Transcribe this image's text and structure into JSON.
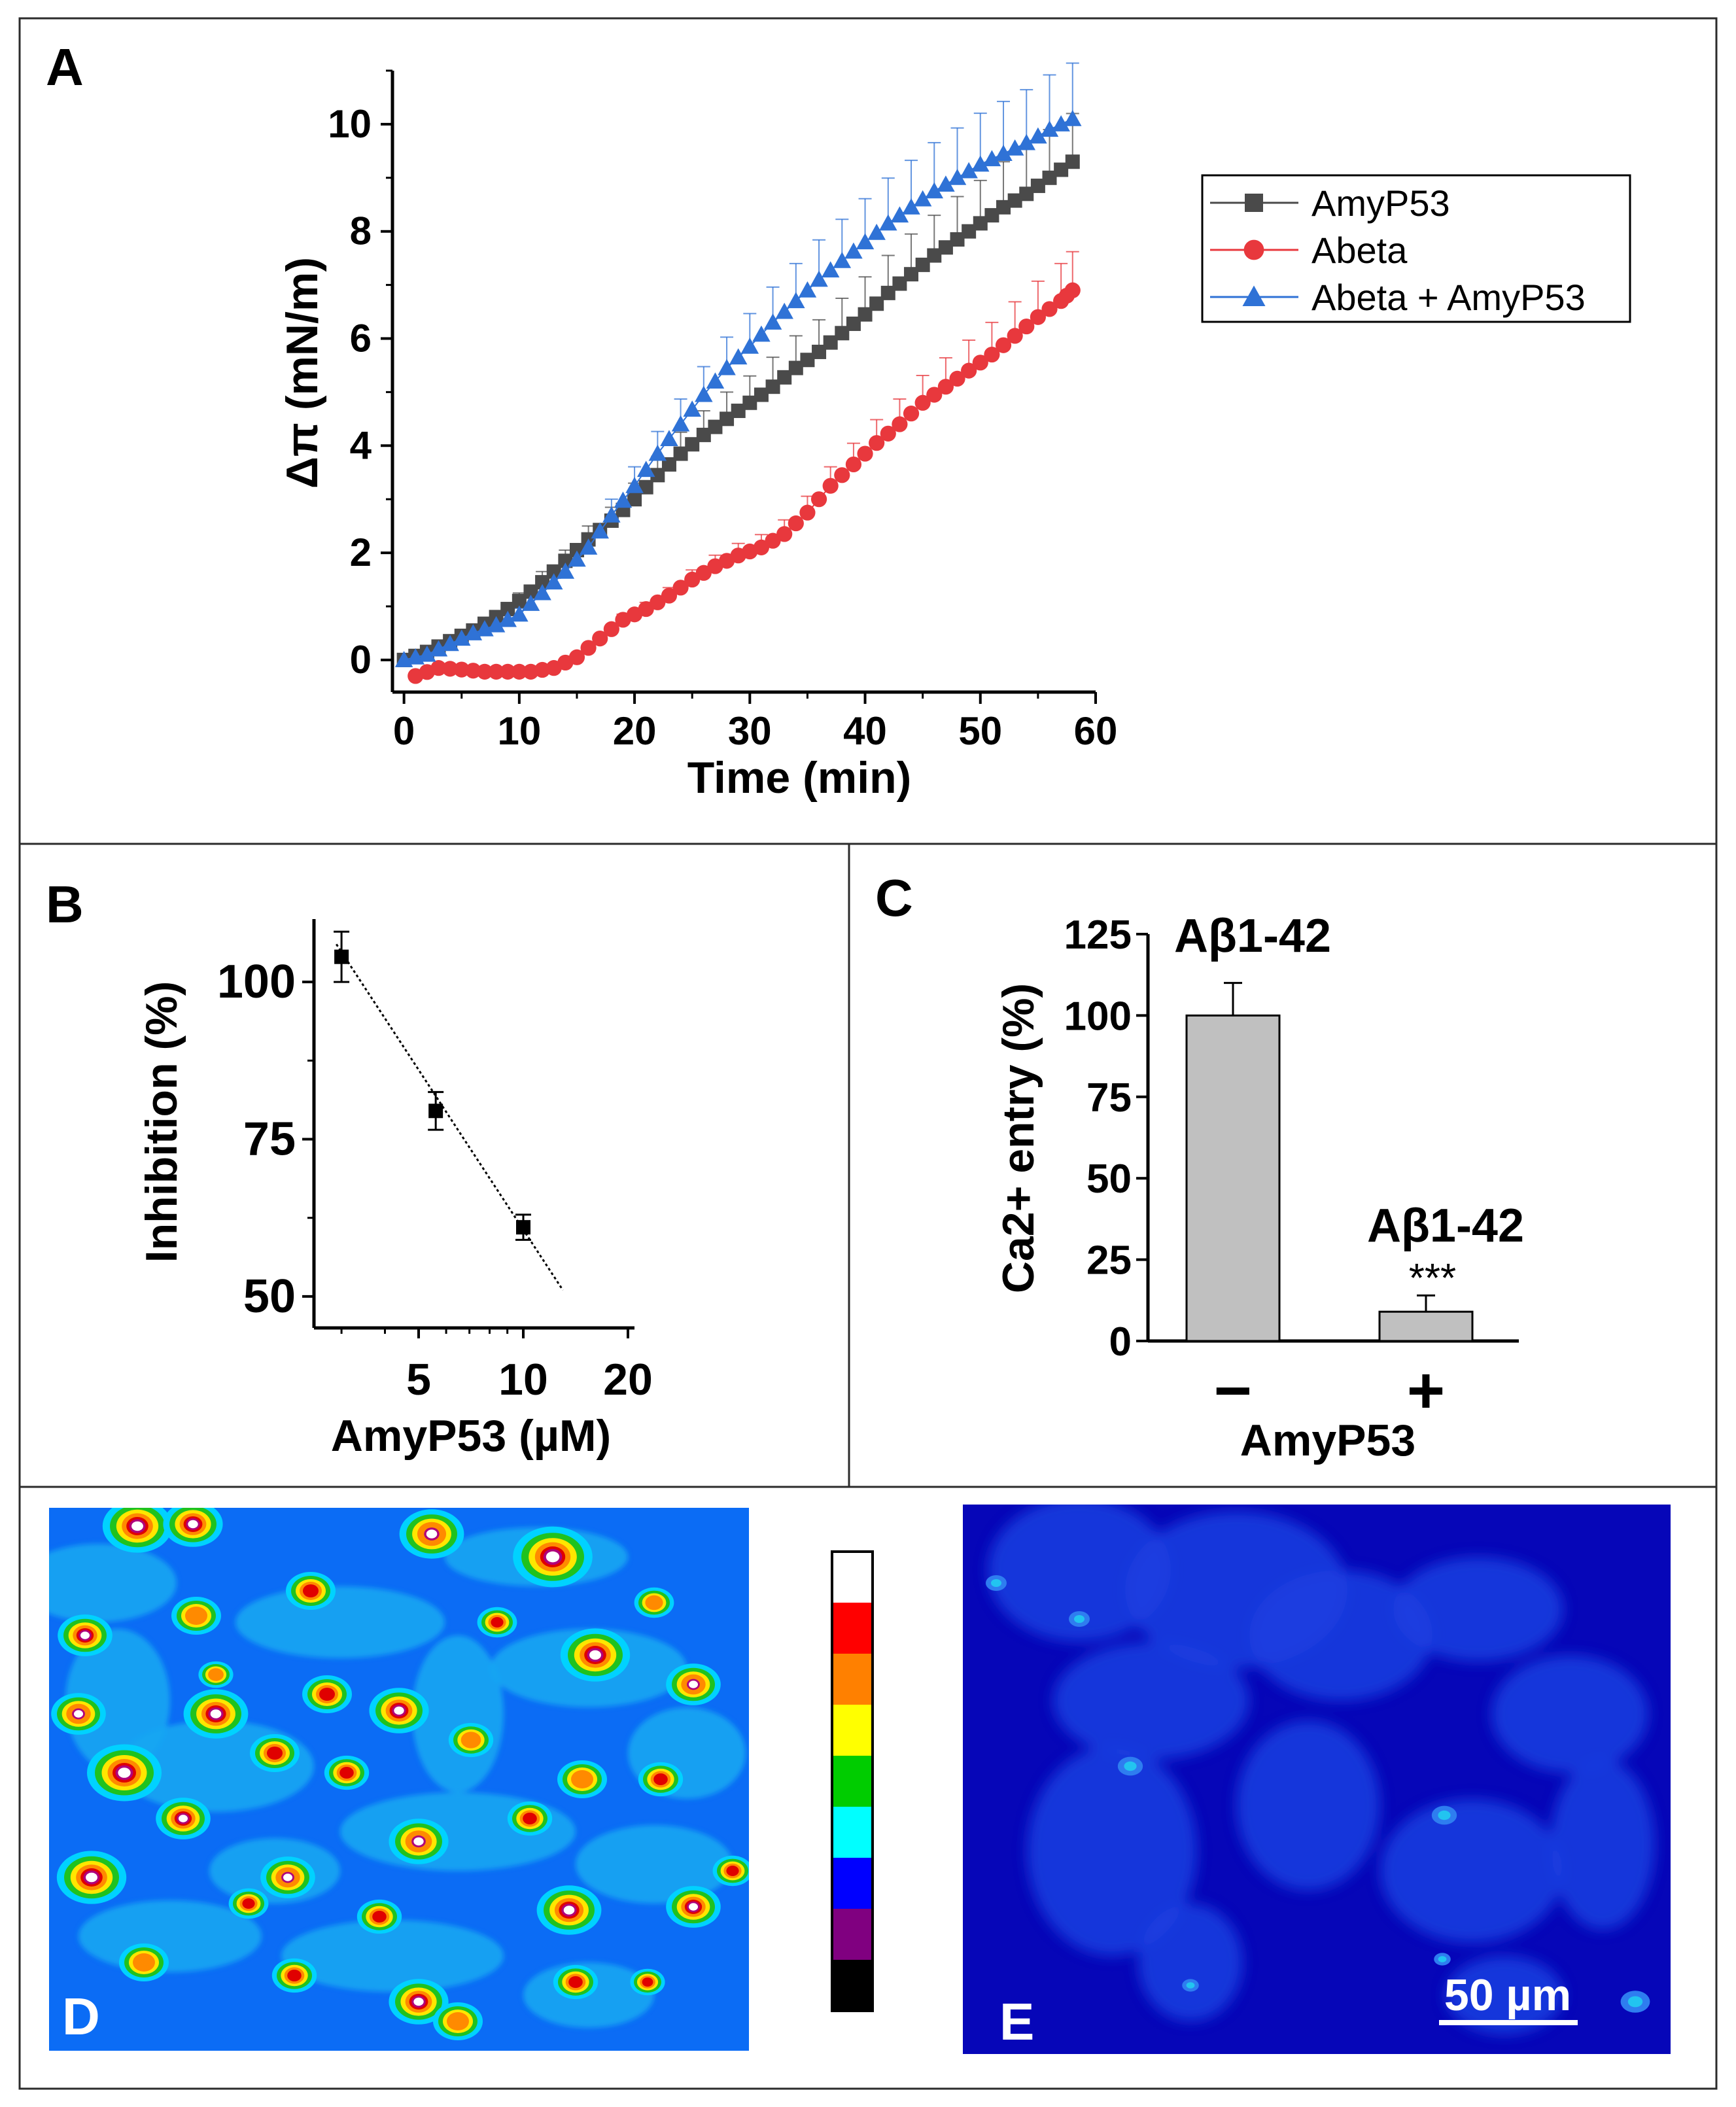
{
  "panels": {
    "A": {
      "letter": "A"
    },
    "B": {
      "letter": "B"
    },
    "C": {
      "letter": "C"
    },
    "D": {
      "letter": "D"
    },
    "E": {
      "letter": "E"
    }
  },
  "colors": {
    "amyp53": "#4a4a4a",
    "abeta": "#e8383d",
    "abeta_amyp53": "#2f72d6",
    "bar_fill": "#c0c0c0",
    "scale_bar": "#ffffff"
  },
  "colorbar_colors": [
    "#ffffff",
    "#ff0000",
    "#ff8000",
    "#ffff00",
    "#00cc00",
    "#00ffff",
    "#0000ff",
    "#800080",
    "#000000"
  ],
  "scale_bar_label": "50 µm",
  "chart_data": [
    {
      "id": "A",
      "type": "line",
      "title": "",
      "xlabel": "Time (min)",
      "ylabel": "Δπ (mN/m)",
      "xlim": [
        -1,
        60
      ],
      "ylim": [
        -0.6,
        11
      ],
      "xticks": [
        0,
        10,
        20,
        30,
        40,
        50,
        60
      ],
      "yticks": [
        0,
        2,
        4,
        6,
        8,
        10
      ],
      "legend": [
        "AmyP53",
        "Abeta",
        "Abeta + AmyP53"
      ],
      "legend_position": "right",
      "series": [
        {
          "name": "AmyP53",
          "marker": "square",
          "x": [
            0,
            2,
            4,
            6,
            8,
            10,
            12,
            14,
            16,
            18,
            20,
            22,
            24,
            26,
            28,
            30,
            32,
            34,
            36,
            38,
            40,
            42,
            44,
            46,
            48,
            50,
            52,
            54,
            56,
            58
          ],
          "values": [
            0,
            0.15,
            0.35,
            0.55,
            0.8,
            1.1,
            1.45,
            1.85,
            2.25,
            2.6,
            3.0,
            3.45,
            3.85,
            4.2,
            4.5,
            4.8,
            5.1,
            5.45,
            5.75,
            6.1,
            6.45,
            6.85,
            7.2,
            7.55,
            7.85,
            8.15,
            8.45,
            8.7,
            9.0,
            9.3
          ],
          "errors": [
            0.05,
            0.1,
            0.1,
            0.1,
            0.12,
            0.15,
            0.2,
            0.2,
            0.25,
            0.25,
            0.3,
            0.35,
            0.4,
            0.45,
            0.5,
            0.5,
            0.55,
            0.6,
            0.6,
            0.65,
            0.7,
            0.7,
            0.75,
            0.75,
            0.8,
            0.8,
            0.85,
            0.85,
            0.9,
            0.9
          ]
        },
        {
          "name": "Abeta",
          "marker": "circle",
          "x": [
            1,
            3,
            5,
            7,
            9,
            11,
            13,
            15,
            17,
            19,
            21,
            23,
            25,
            27,
            29,
            31,
            33,
            35,
            37,
            39,
            41,
            43,
            45,
            47,
            49,
            51,
            53,
            55,
            57,
            58
          ],
          "values": [
            -0.3,
            -0.15,
            -0.18,
            -0.22,
            -0.22,
            -0.22,
            -0.15,
            0.05,
            0.4,
            0.75,
            0.95,
            1.2,
            1.5,
            1.75,
            1.95,
            2.1,
            2.35,
            2.75,
            3.25,
            3.65,
            4.05,
            4.4,
            4.8,
            5.1,
            5.4,
            5.7,
            6.05,
            6.4,
            6.7,
            6.9
          ]
        },
        {
          "name": "Abeta + AmyP53",
          "marker": "triangle",
          "x": [
            0,
            2,
            4,
            6,
            8,
            10,
            12,
            14,
            16,
            18,
            20,
            22,
            24,
            26,
            28,
            30,
            32,
            34,
            36,
            38,
            40,
            42,
            44,
            46,
            48,
            50,
            52,
            54,
            56,
            58
          ],
          "values": [
            0,
            0.1,
            0.3,
            0.5,
            0.65,
            0.85,
            1.25,
            1.65,
            2.1,
            2.7,
            3.25,
            3.85,
            4.4,
            4.95,
            5.45,
            5.85,
            6.3,
            6.7,
            7.1,
            7.45,
            7.8,
            8.15,
            8.45,
            8.75,
            9.0,
            9.25,
            9.45,
            9.65,
            9.9,
            10.1
          ]
        }
      ]
    },
    {
      "id": "B",
      "type": "scatter",
      "xlabel": "AmyP53 (µM)",
      "ylabel": "Inhibition (%)",
      "xscale": "log",
      "xlim": [
        2.5,
        20
      ],
      "ylim": [
        45,
        110
      ],
      "xticks": [
        5,
        10,
        20
      ],
      "yticks": [
        50,
        75,
        100
      ],
      "points": [
        {
          "x": 3,
          "y": 104,
          "err": 4
        },
        {
          "x": 5.6,
          "y": 79.5,
          "err": 3
        },
        {
          "x": 10,
          "y": 61,
          "err": 2
        }
      ],
      "fit": {
        "x": [
          2.9,
          13
        ],
        "y": [
          106,
          51
        ]
      }
    },
    {
      "id": "C",
      "type": "bar",
      "xlabel": "AmyP53",
      "ylabel": "Ca2+ entry (%)",
      "ylim": [
        0,
        125
      ],
      "yticks": [
        0,
        25,
        50,
        75,
        100,
        125
      ],
      "categories": [
        "−",
        "+"
      ],
      "values": [
        100,
        9
      ],
      "errors": [
        10,
        5
      ],
      "bar_labels": [
        "Aβ1-42",
        "Aβ1-42"
      ],
      "significance": [
        "",
        "***"
      ]
    }
  ]
}
